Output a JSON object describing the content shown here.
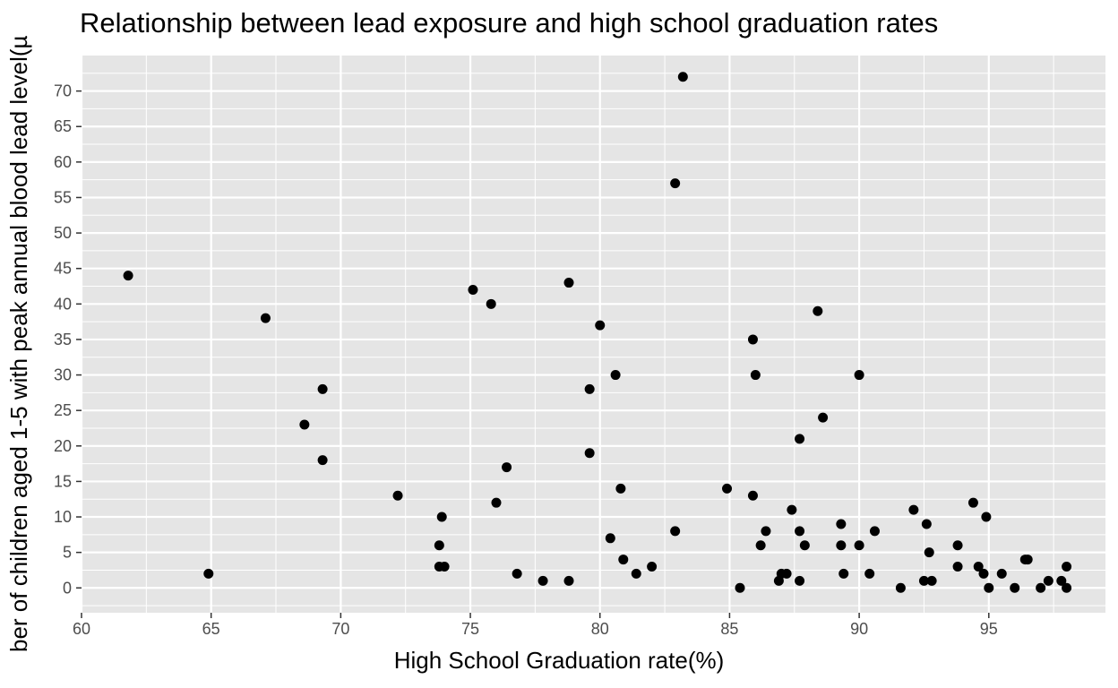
{
  "chart_data": {
    "type": "scatter",
    "title": "Relationship between lead exposure and high school graduation rates",
    "xlabel": "High School Graduation rate(%)",
    "ylabel": "ber of children aged 1-5 with peak annual blood lead level(µ",
    "xlim": [
      60,
      99.5
    ],
    "ylim": [
      -3.5,
      75
    ],
    "xticks": [
      60,
      65,
      70,
      75,
      80,
      85,
      90,
      95
    ],
    "yticks": [
      0,
      5,
      10,
      15,
      20,
      25,
      30,
      35,
      40,
      45,
      50,
      55,
      60,
      65,
      70
    ],
    "grid": true,
    "colors": {
      "panel": "#e5e5e5",
      "grid": "#ffffff",
      "point": "#000000",
      "tick_text": "#4d4d4d"
    },
    "points": [
      {
        "x": 61.8,
        "y": 44
      },
      {
        "x": 64.9,
        "y": 2
      },
      {
        "x": 67.1,
        "y": 38
      },
      {
        "x": 68.6,
        "y": 23
      },
      {
        "x": 69.3,
        "y": 28
      },
      {
        "x": 69.3,
        "y": 18
      },
      {
        "x": 72.2,
        "y": 13
      },
      {
        "x": 73.8,
        "y": 6
      },
      {
        "x": 73.8,
        "y": 3
      },
      {
        "x": 73.9,
        "y": 10
      },
      {
        "x": 74.0,
        "y": 3
      },
      {
        "x": 75.1,
        "y": 42
      },
      {
        "x": 75.8,
        "y": 40
      },
      {
        "x": 76.0,
        "y": 12
      },
      {
        "x": 76.4,
        "y": 17
      },
      {
        "x": 76.8,
        "y": 2
      },
      {
        "x": 77.8,
        "y": 1
      },
      {
        "x": 78.8,
        "y": 43
      },
      {
        "x": 78.8,
        "y": 1
      },
      {
        "x": 79.6,
        "y": 28
      },
      {
        "x": 79.6,
        "y": 19
      },
      {
        "x": 80.0,
        "y": 37
      },
      {
        "x": 80.4,
        "y": 7
      },
      {
        "x": 80.6,
        "y": 30
      },
      {
        "x": 80.8,
        "y": 14
      },
      {
        "x": 80.9,
        "y": 4
      },
      {
        "x": 81.4,
        "y": 2
      },
      {
        "x": 82.0,
        "y": 3
      },
      {
        "x": 82.9,
        "y": 57
      },
      {
        "x": 82.9,
        "y": 8
      },
      {
        "x": 83.2,
        "y": 72
      },
      {
        "x": 84.9,
        "y": 14
      },
      {
        "x": 85.4,
        "y": 0
      },
      {
        "x": 85.9,
        "y": 35
      },
      {
        "x": 85.9,
        "y": 13
      },
      {
        "x": 86.0,
        "y": 30
      },
      {
        "x": 86.2,
        "y": 6
      },
      {
        "x": 86.4,
        "y": 8
      },
      {
        "x": 86.9,
        "y": 1
      },
      {
        "x": 87.0,
        "y": 2
      },
      {
        "x": 87.2,
        "y": 2
      },
      {
        "x": 87.4,
        "y": 11
      },
      {
        "x": 87.7,
        "y": 21
      },
      {
        "x": 87.7,
        "y": 8
      },
      {
        "x": 87.7,
        "y": 1
      },
      {
        "x": 87.9,
        "y": 6
      },
      {
        "x": 88.4,
        "y": 39
      },
      {
        "x": 88.6,
        "y": 24
      },
      {
        "x": 89.3,
        "y": 9
      },
      {
        "x": 89.3,
        "y": 6
      },
      {
        "x": 89.4,
        "y": 2
      },
      {
        "x": 90.0,
        "y": 30
      },
      {
        "x": 90.0,
        "y": 6
      },
      {
        "x": 90.4,
        "y": 2
      },
      {
        "x": 90.6,
        "y": 8
      },
      {
        "x": 91.6,
        "y": 0
      },
      {
        "x": 92.1,
        "y": 11
      },
      {
        "x": 92.5,
        "y": 1
      },
      {
        "x": 92.6,
        "y": 9
      },
      {
        "x": 92.7,
        "y": 5
      },
      {
        "x": 92.8,
        "y": 1
      },
      {
        "x": 93.8,
        "y": 6
      },
      {
        "x": 93.8,
        "y": 3
      },
      {
        "x": 94.4,
        "y": 12
      },
      {
        "x": 94.6,
        "y": 3
      },
      {
        "x": 94.8,
        "y": 2
      },
      {
        "x": 94.9,
        "y": 10
      },
      {
        "x": 95.0,
        "y": 0
      },
      {
        "x": 95.5,
        "y": 2
      },
      {
        "x": 96.0,
        "y": 0
      },
      {
        "x": 96.4,
        "y": 4
      },
      {
        "x": 96.5,
        "y": 4
      },
      {
        "x": 97.0,
        "y": 0
      },
      {
        "x": 97.3,
        "y": 1
      },
      {
        "x": 97.8,
        "y": 1
      },
      {
        "x": 98.0,
        "y": 3
      },
      {
        "x": 98.0,
        "y": 0
      }
    ]
  }
}
